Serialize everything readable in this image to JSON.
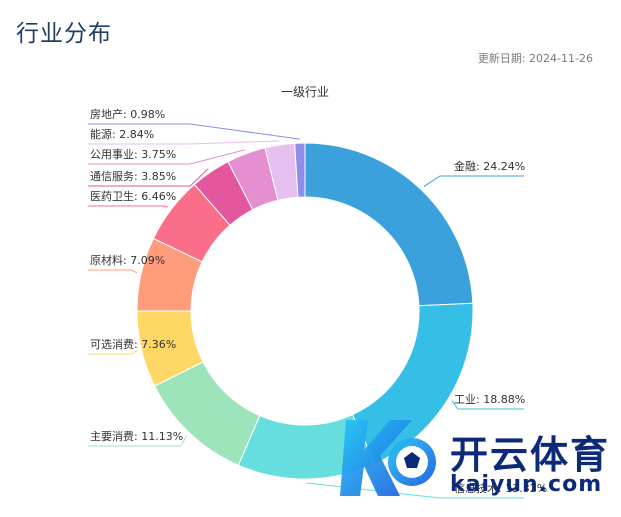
{
  "header": {
    "title": "行业分布",
    "update_date": "更新日期: 2024-11-26"
  },
  "chart_data": {
    "type": "pie",
    "donut": true,
    "title": "一级行业",
    "slices": [
      {
        "label": "金融",
        "value": 24.24,
        "color": "#3aa1dc",
        "display": "金融: 24.24%"
      },
      {
        "label": "工业",
        "value": 18.88,
        "color": "#36bfe6",
        "display": "工业: 18.88%"
      },
      {
        "label": "信息技术",
        "value": 13.32,
        "color": "#66dede",
        "display": "信息技术: 13.32%"
      },
      {
        "label": "主要消费",
        "value": 11.13,
        "color": "#9ee4bb",
        "display": "主要消费: 11.13%"
      },
      {
        "label": "可选消费",
        "value": 7.36,
        "color": "#fed766",
        "display": "可选消费: 7.36%"
      },
      {
        "label": "原材料",
        "value": 7.09,
        "color": "#ff9c7b",
        "display": "原材料: 7.09%"
      },
      {
        "label": "医药卫生",
        "value": 6.46,
        "color": "#fa6e8a",
        "display": "医药卫生: 6.46%"
      },
      {
        "label": "通信服务",
        "value": 3.85,
        "color": "#e4569e",
        "display": "通信服务: 3.85%"
      },
      {
        "label": "公用事业",
        "value": 3.75,
        "color": "#e38fd0",
        "display": "公用事业: 3.75%"
      },
      {
        "label": "能源",
        "value": 2.84,
        "color": "#e6bff1",
        "display": "能源: 2.84%"
      },
      {
        "label": "房地产",
        "value": 0.98,
        "color": "#8f8de8",
        "display": "房地产: 0.98%"
      }
    ],
    "legend": "none"
  },
  "watermark": {
    "brand": "开云体育",
    "url": "kaiyun.com"
  }
}
